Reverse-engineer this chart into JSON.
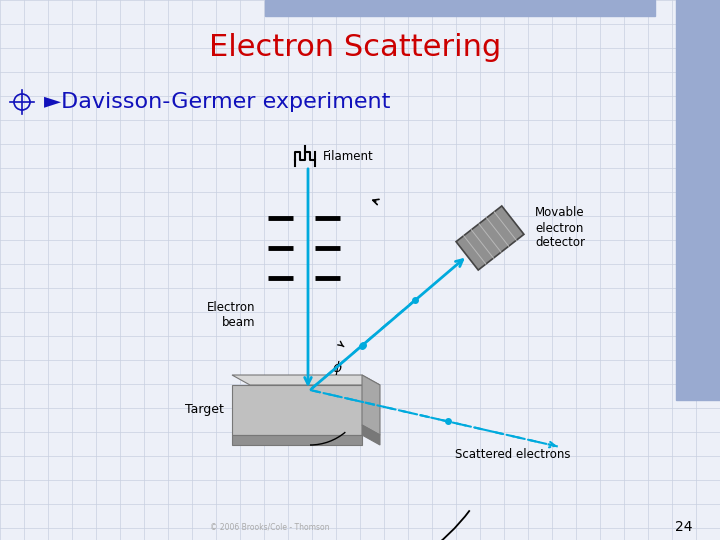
{
  "title": "Electron Scattering",
  "title_color": "#CC0000",
  "title_fontsize": 22,
  "bullet_text": "►Davisson-Germer experiment",
  "bullet_color": "#1111bb",
  "bullet_fontsize": 16,
  "page_number": "24",
  "background_color": "#edf0f8",
  "grid_color": "#c8d0e0",
  "top_bar_color": "#99aad0",
  "right_bar_color": "#99aad0",
  "beam_color": "#00aadd",
  "copyright_text": "© 2006 Brooks/Cole - Thomson"
}
